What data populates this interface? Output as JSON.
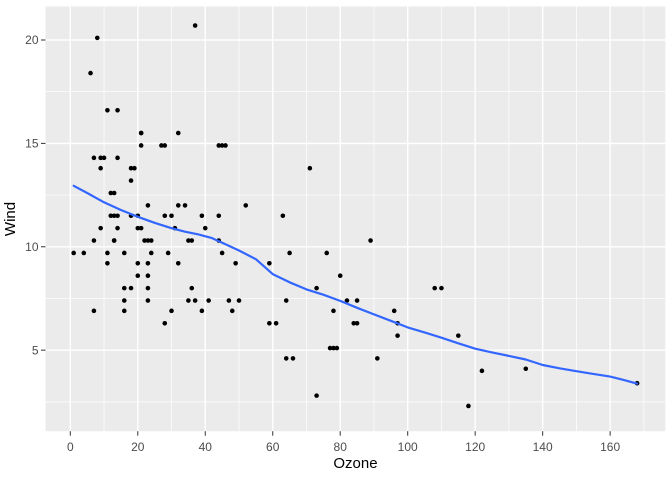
{
  "chart_data": {
    "type": "scatter",
    "title": "",
    "xlabel": "Ozone",
    "ylabel": "Wind",
    "xlim": [
      -7.35,
      176.35
    ],
    "ylim": [
      1.08,
      21.62
    ],
    "x_ticks": [
      0,
      20,
      40,
      60,
      80,
      100,
      120,
      140,
      160
    ],
    "y_ticks": [
      5,
      10,
      15,
      20
    ],
    "x_minor_breaks": [
      10,
      30,
      50,
      70,
      90,
      110,
      130,
      150,
      170
    ],
    "y_minor_breaks": [
      2.5,
      7.5,
      12.5,
      17.5
    ],
    "grid": true,
    "legend_position": "none",
    "theme": {
      "panel_bg": "#EBEBEB",
      "grid_color": "#FFFFFF",
      "point_color": "#000000",
      "smooth_color": "#3366FF",
      "axis_text_color": "#4D4D4D",
      "tick_mark_color": "#333333",
      "outer_bg": "#FFFFFF"
    },
    "series": [
      {
        "name": "observations",
        "geom": "point",
        "points": [
          [
            41,
            7.4
          ],
          [
            36,
            8
          ],
          [
            12,
            12.6
          ],
          [
            18,
            11.5
          ],
          [
            28,
            14.9
          ],
          [
            23,
            8.6
          ],
          [
            19,
            13.8
          ],
          [
            8,
            20.1
          ],
          [
            7,
            6.9
          ],
          [
            16,
            9.7
          ],
          [
            11,
            9.2
          ],
          [
            14,
            10.9
          ],
          [
            18,
            13.2
          ],
          [
            14,
            11.5
          ],
          [
            34,
            12
          ],
          [
            6,
            18.4
          ],
          [
            30,
            11.5
          ],
          [
            11,
            9.7
          ],
          [
            1,
            9.7
          ],
          [
            11,
            16.6
          ],
          [
            4,
            9.7
          ],
          [
            32,
            12
          ],
          [
            23,
            12
          ],
          [
            45,
            14.9
          ],
          [
            115,
            5.7
          ],
          [
            37,
            7.4
          ],
          [
            29,
            9.7
          ],
          [
            71,
            13.8
          ],
          [
            39,
            11.5
          ],
          [
            23,
            8
          ],
          [
            21,
            14.9
          ],
          [
            37,
            20.7
          ],
          [
            20,
            9.2
          ],
          [
            12,
            11.5
          ],
          [
            13,
            10.3
          ],
          [
            135,
            4.1
          ],
          [
            49,
            9.2
          ],
          [
            32,
            9.2
          ],
          [
            64,
            4.6
          ],
          [
            40,
            10.9
          ],
          [
            77,
            5.1
          ],
          [
            97,
            6.3
          ],
          [
            97,
            5.7
          ],
          [
            85,
            7.4
          ],
          [
            10,
            14.3
          ],
          [
            27,
            14.9
          ],
          [
            7,
            14.3
          ],
          [
            48,
            6.9
          ],
          [
            35,
            10.3
          ],
          [
            61,
            6.3
          ],
          [
            79,
            5.1
          ],
          [
            63,
            11.5
          ],
          [
            16,
            6.9
          ],
          [
            80,
            8.6
          ],
          [
            108,
            8
          ],
          [
            20,
            8.6
          ],
          [
            52,
            12
          ],
          [
            82,
            7.4
          ],
          [
            50,
            7.4
          ],
          [
            64,
            7.4
          ],
          [
            59,
            9.2
          ],
          [
            39,
            6.9
          ],
          [
            9,
            13.8
          ],
          [
            16,
            7.4
          ],
          [
            78,
            6.9
          ],
          [
            35,
            7.4
          ],
          [
            66,
            4.6
          ],
          [
            122,
            4
          ],
          [
            89,
            10.3
          ],
          [
            110,
            8
          ],
          [
            44,
            11.5
          ],
          [
            28,
            11.5
          ],
          [
            65,
            9.7
          ],
          [
            22,
            10.3
          ],
          [
            59,
            6.3
          ],
          [
            23,
            7.4
          ],
          [
            31,
            10.9
          ],
          [
            44,
            10.3
          ],
          [
            21,
            15.5
          ],
          [
            9,
            14.3
          ],
          [
            45,
            9.7
          ],
          [
            168,
            3.4
          ],
          [
            73,
            8
          ],
          [
            76,
            9.7
          ],
          [
            118,
            2.3
          ],
          [
            84,
            6.3
          ],
          [
            85,
            6.3
          ],
          [
            96,
            6.9
          ],
          [
            78,
            5.1
          ],
          [
            73,
            2.8
          ],
          [
            91,
            4.6
          ],
          [
            47,
            7.4
          ],
          [
            32,
            15.5
          ],
          [
            20,
            10.9
          ],
          [
            23,
            10.3
          ],
          [
            21,
            10.9
          ],
          [
            24,
            9.7
          ],
          [
            44,
            14.9
          ],
          [
            21,
            15.5
          ],
          [
            28,
            6.3
          ],
          [
            9,
            10.9
          ],
          [
            13,
            11.5
          ],
          [
            46,
            14.9
          ],
          [
            18,
            13.8
          ],
          [
            13,
            10.3
          ],
          [
            24,
            10.3
          ],
          [
            16,
            8
          ],
          [
            13,
            12.6
          ],
          [
            23,
            9.2
          ],
          [
            36,
            10.3
          ],
          [
            7,
            10.3
          ],
          [
            14,
            16.6
          ],
          [
            30,
            6.9
          ],
          [
            14,
            14.3
          ],
          [
            18,
            8
          ],
          [
            20,
            11.5
          ]
        ]
      },
      {
        "name": "loess-smooth",
        "geom": "line",
        "points": [
          [
            1,
            12.95
          ],
          [
            5,
            12.6
          ],
          [
            10,
            12.15
          ],
          [
            15,
            11.78
          ],
          [
            20,
            11.45
          ],
          [
            25,
            11.16
          ],
          [
            30,
            10.9
          ],
          [
            34,
            10.73
          ],
          [
            38,
            10.6
          ],
          [
            42,
            10.42
          ],
          [
            46,
            10.12
          ],
          [
            50,
            9.82
          ],
          [
            55,
            9.4
          ],
          [
            60,
            8.68
          ],
          [
            65,
            8.28
          ],
          [
            70,
            7.94
          ],
          [
            75,
            7.68
          ],
          [
            80,
            7.38
          ],
          [
            85,
            7.05
          ],
          [
            90,
            6.73
          ],
          [
            95,
            6.42
          ],
          [
            100,
            6.1
          ],
          [
            105,
            5.86
          ],
          [
            110,
            5.6
          ],
          [
            115,
            5.33
          ],
          [
            120,
            5.07
          ],
          [
            125,
            4.89
          ],
          [
            130,
            4.72
          ],
          [
            135,
            4.55
          ],
          [
            140,
            4.28
          ],
          [
            145,
            4.12
          ],
          [
            150,
            3.98
          ],
          [
            155,
            3.85
          ],
          [
            160,
            3.72
          ],
          [
            164,
            3.56
          ],
          [
            168,
            3.38
          ]
        ]
      }
    ]
  }
}
